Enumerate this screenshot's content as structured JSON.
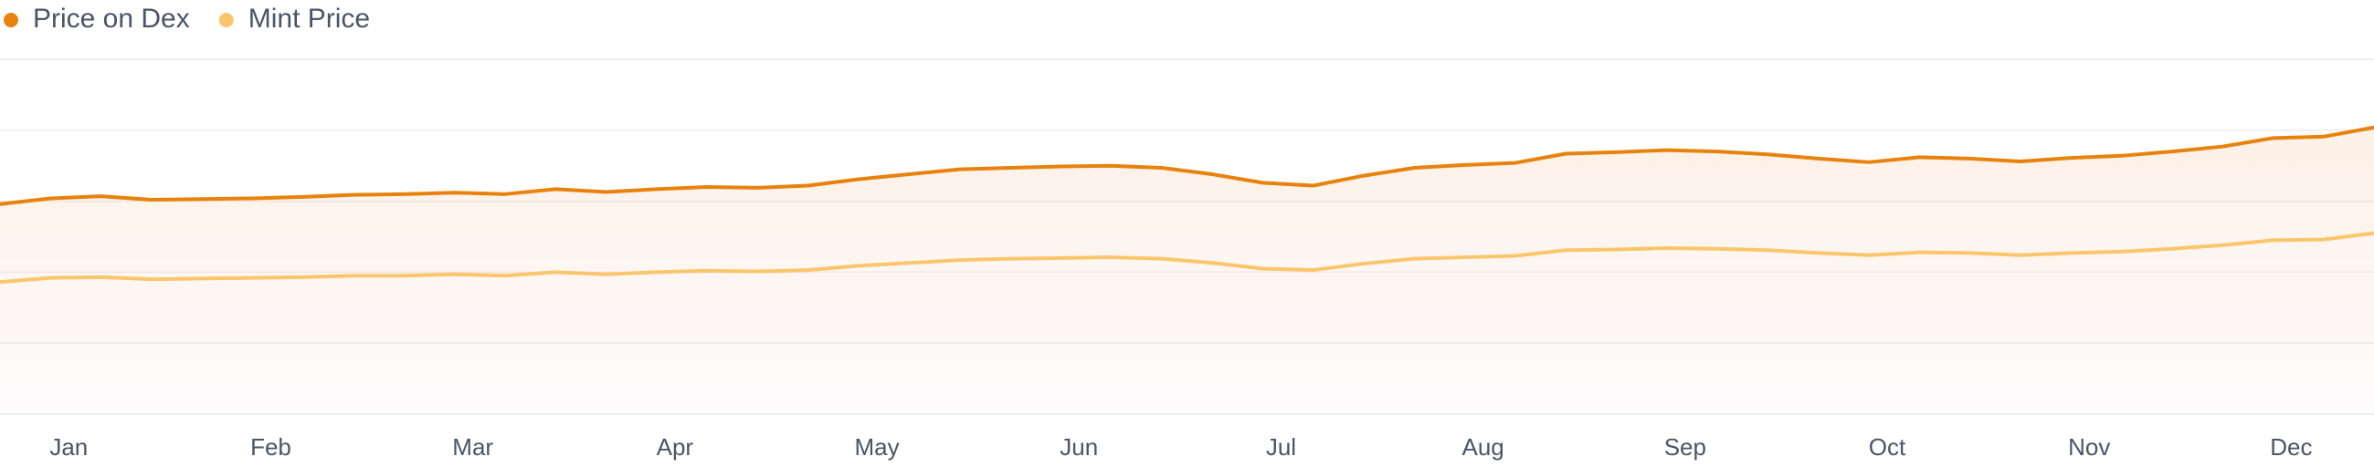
{
  "chart_data": {
    "type": "line",
    "categories": [
      null,
      "Jan",
      null,
      null,
      null,
      "Feb",
      null,
      null,
      null,
      "Mar",
      null,
      null,
      null,
      "Apr",
      null,
      null,
      null,
      "May",
      null,
      null,
      null,
      "Jun",
      null,
      null,
      null,
      "Jul",
      null,
      null,
      null,
      "Aug",
      null,
      null,
      null,
      "Sep",
      null,
      null,
      null,
      "Oct",
      null,
      null,
      null,
      "Nov",
      null,
      null,
      null,
      "Dec",
      null,
      null
    ],
    "series": [
      {
        "name": "Price on Dex",
        "color": "#e8820c",
        "values": [
          2.96,
          3.04,
          3.07,
          3.02,
          3.03,
          3.04,
          3.06,
          3.09,
          3.1,
          3.12,
          3.1,
          3.17,
          3.13,
          3.17,
          3.2,
          3.19,
          3.22,
          3.31,
          3.38,
          3.45,
          3.47,
          3.49,
          3.5,
          3.47,
          3.38,
          3.26,
          3.22,
          3.36,
          3.47,
          3.51,
          3.54,
          3.67,
          3.69,
          3.72,
          3.7,
          3.66,
          3.6,
          3.55,
          3.62,
          3.6,
          3.56,
          3.61,
          3.64,
          3.7,
          3.77,
          3.89,
          3.91,
          4.04
        ]
      },
      {
        "name": "Mint Price",
        "color": "#fbc66b",
        "values": [
          1.86,
          1.92,
          1.93,
          1.9,
          1.91,
          1.92,
          1.93,
          1.95,
          1.95,
          1.97,
          1.95,
          2.0,
          1.97,
          2.0,
          2.02,
          2.01,
          2.03,
          2.09,
          2.13,
          2.17,
          2.19,
          2.2,
          2.21,
          2.19,
          2.13,
          2.05,
          2.03,
          2.12,
          2.19,
          2.21,
          2.23,
          2.31,
          2.32,
          2.34,
          2.33,
          2.31,
          2.27,
          2.24,
          2.28,
          2.27,
          2.24,
          2.27,
          2.29,
          2.33,
          2.38,
          2.45,
          2.46,
          2.55
        ]
      }
    ],
    "ylim": [
      0,
      5
    ],
    "yticks": [
      0,
      1,
      2,
      3,
      4,
      5
    ],
    "grid": true
  }
}
